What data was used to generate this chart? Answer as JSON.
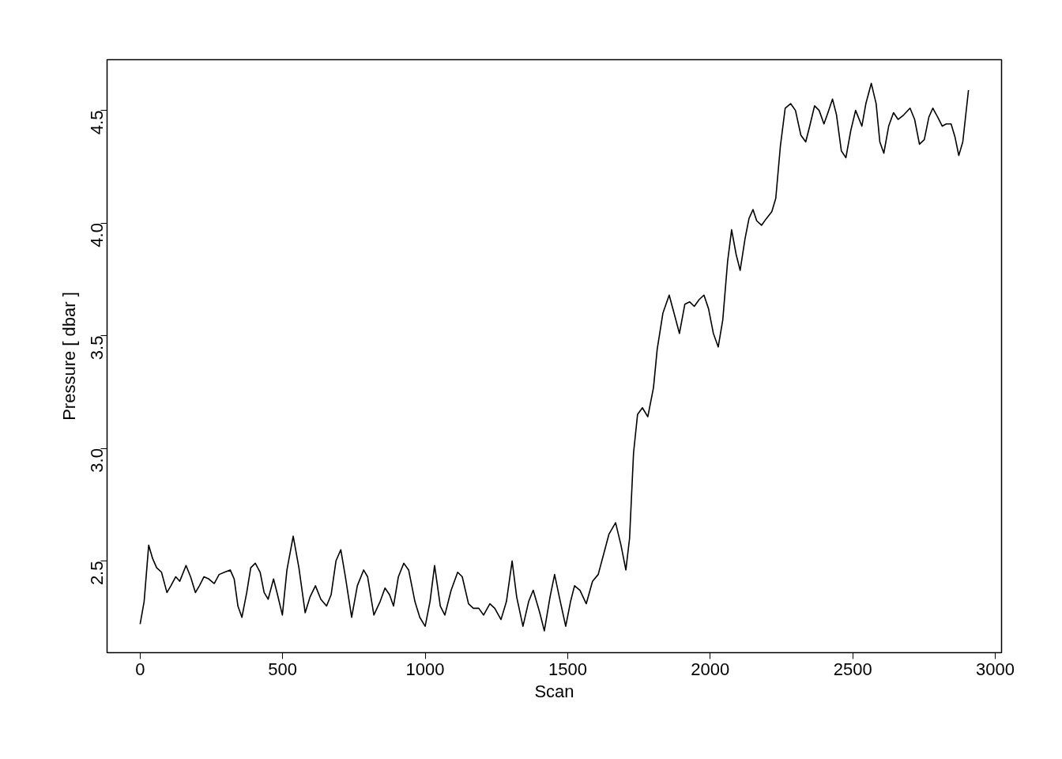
{
  "chart_data": {
    "type": "line",
    "xlabel": "Scan",
    "ylabel": "Pressure [ dbar ]",
    "xlim": [
      -116,
      3022
    ],
    "ylim": [
      2.093,
      4.725
    ],
    "xticks": [
      0,
      500,
      1000,
      1500,
      2000,
      2500,
      3000
    ],
    "yticks": [
      {
        "value": 2.5,
        "label": "2.5"
      },
      {
        "value": 3.0,
        "label": "3.0"
      },
      {
        "value": 3.5,
        "label": "3.5"
      },
      {
        "value": 4.0,
        "label": "4.0"
      },
      {
        "value": 4.5,
        "label": "4.5"
      }
    ],
    "grid": false,
    "marker": "none",
    "line_style": "solid",
    "series": [
      {
        "color": "#000000",
        "x": [
          0,
          14,
          30,
          44,
          58,
          75,
          94,
          108,
          125,
          139,
          161,
          177,
          194,
          208,
          224,
          241,
          260,
          277,
          296,
          316,
          330,
          343,
          357,
          374,
          388,
          404,
          421,
          435,
          449,
          468,
          482,
          499,
          515,
          537,
          557,
          579,
          596,
          615,
          634,
          654,
          670,
          687,
          704,
          720,
          742,
          762,
          784,
          798,
          820,
          842,
          859,
          875,
          889,
          906,
          925,
          942,
          964,
          981,
          1000,
          1017,
          1033,
          1053,
          1069,
          1091,
          1114,
          1130,
          1152,
          1169,
          1188,
          1205,
          1227,
          1244,
          1266,
          1285,
          1305,
          1321,
          1343,
          1363,
          1379,
          1402,
          1418,
          1438,
          1454,
          1474,
          1493,
          1510,
          1524,
          1543,
          1565,
          1587,
          1607,
          1626,
          1645,
          1668,
          1687,
          1704,
          1717,
          1731,
          1745,
          1762,
          1781,
          1801,
          1814,
          1834,
          1856,
          1873,
          1892,
          1911,
          1928,
          1944,
          1961,
          1978,
          1994,
          2011,
          2028,
          2044,
          2061,
          2075,
          2091,
          2105,
          2122,
          2136,
          2150,
          2163,
          2180,
          2197,
          2216,
          2230,
          2246,
          2263,
          2282,
          2299,
          2318,
          2335,
          2349,
          2366,
          2382,
          2399,
          2413,
          2429,
          2443,
          2460,
          2476,
          2493,
          2510,
          2532,
          2546,
          2565,
          2582,
          2595,
          2609,
          2626,
          2643,
          2659,
          2679,
          2701,
          2717,
          2734,
          2751,
          2767,
          2781,
          2798,
          2814,
          2828,
          2845,
          2859,
          2872,
          2886,
          2906
        ],
        "values": [
          2.22,
          2.32,
          2.57,
          2.51,
          2.47,
          2.45,
          2.36,
          2.39,
          2.43,
          2.41,
          2.48,
          2.43,
          2.36,
          2.39,
          2.43,
          2.42,
          2.4,
          2.44,
          2.45,
          2.46,
          2.42,
          2.3,
          2.25,
          2.36,
          2.47,
          2.49,
          2.45,
          2.36,
          2.33,
          2.42,
          2.35,
          2.26,
          2.46,
          2.61,
          2.47,
          2.27,
          2.34,
          2.39,
          2.33,
          2.3,
          2.35,
          2.5,
          2.55,
          2.43,
          2.25,
          2.39,
          2.46,
          2.43,
          2.26,
          2.32,
          2.38,
          2.35,
          2.3,
          2.43,
          2.49,
          2.46,
          2.32,
          2.25,
          2.21,
          2.32,
          2.48,
          2.3,
          2.26,
          2.37,
          2.45,
          2.43,
          2.31,
          2.29,
          2.29,
          2.26,
          2.31,
          2.29,
          2.24,
          2.32,
          2.5,
          2.34,
          2.21,
          2.32,
          2.37,
          2.27,
          2.19,
          2.34,
          2.44,
          2.32,
          2.21,
          2.32,
          2.39,
          2.37,
          2.31,
          2.41,
          2.44,
          2.53,
          2.62,
          2.67,
          2.57,
          2.46,
          2.6,
          2.98,
          3.15,
          3.18,
          3.14,
          3.27,
          3.44,
          3.6,
          3.68,
          3.6,
          3.51,
          3.64,
          3.65,
          3.63,
          3.66,
          3.68,
          3.62,
          3.51,
          3.45,
          3.57,
          3.83,
          3.97,
          3.86,
          3.79,
          3.93,
          4.02,
          4.06,
          4.01,
          3.99,
          4.02,
          4.05,
          4.11,
          4.34,
          4.51,
          4.53,
          4.5,
          4.39,
          4.36,
          4.43,
          4.52,
          4.5,
          4.44,
          4.49,
          4.55,
          4.48,
          4.32,
          4.29,
          4.41,
          4.5,
          4.43,
          4.53,
          4.62,
          4.53,
          4.36,
          4.31,
          4.43,
          4.49,
          4.46,
          4.48,
          4.51,
          4.46,
          4.35,
          4.37,
          4.47,
          4.51,
          4.47,
          4.43,
          4.44,
          4.44,
          4.38,
          4.3,
          4.36,
          4.59
        ]
      }
    ]
  }
}
